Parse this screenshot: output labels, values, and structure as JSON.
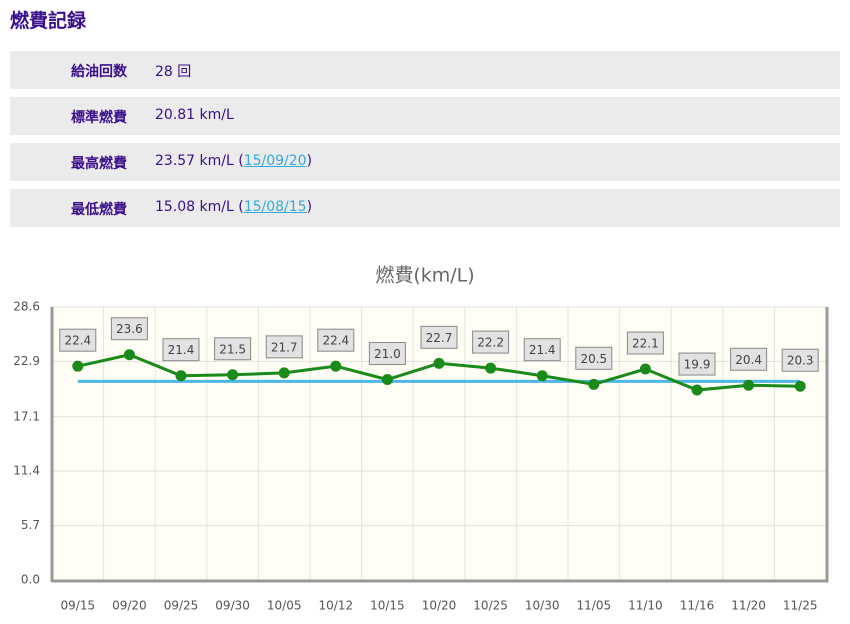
{
  "header": {
    "title": "燃費記録"
  },
  "stats": {
    "rows": [
      {
        "label": "給油回数",
        "value": "28 回"
      },
      {
        "label": "標準燃費",
        "value": "20.81 km/L"
      },
      {
        "label": "最高燃費",
        "value": "23.57 km/L (",
        "link": "15/09/20",
        "after": ")"
      },
      {
        "label": "最低燃費",
        "value": "15.08 km/L (",
        "link": "15/08/15",
        "after": ")"
      }
    ]
  },
  "chart_data": {
    "type": "line",
    "title": "燃費(km/L)",
    "categories": [
      "09/15",
      "09/20",
      "09/25",
      "09/30",
      "10/05",
      "10/12",
      "10/15",
      "10/20",
      "10/25",
      "10/30",
      "11/05",
      "11/10",
      "11/16",
      "11/20",
      "11/25"
    ],
    "series": [
      {
        "name": "燃費",
        "color": "#1a8a1a",
        "values": [
          22.4,
          23.6,
          21.4,
          21.5,
          21.7,
          22.4,
          21.0,
          22.7,
          22.2,
          21.4,
          20.5,
          22.1,
          19.9,
          20.4,
          20.3
        ],
        "value_labels": [
          "22.4",
          "23.6",
          "21.4",
          "21.5",
          "21.7",
          "22.4",
          "21.0",
          "22.7",
          "22.2",
          "21.4",
          "20.5",
          "22.1",
          "19.9",
          "20.4",
          "20.3"
        ]
      }
    ],
    "reference_line": {
      "value": 20.81,
      "color": "#4db8e6"
    },
    "ylim": [
      0,
      28.6
    ],
    "yticks": [
      {
        "value": 0,
        "label": "0.0"
      },
      5.7,
      11.4,
      17.1,
      22.9,
      28.6
    ],
    "grid": true
  }
}
